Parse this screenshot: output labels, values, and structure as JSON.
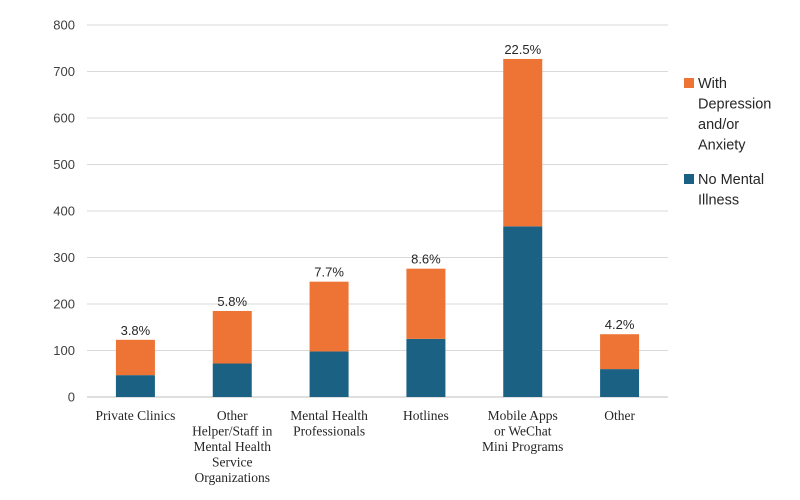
{
  "chart_data": {
    "type": "bar",
    "stacked": true,
    "title": "",
    "xlabel": "",
    "ylabel": "",
    "ylim": [
      0,
      800
    ],
    "yticks": [
      0,
      100,
      200,
      300,
      400,
      500,
      600,
      700,
      800
    ],
    "grid": true,
    "legend_position": "right",
    "categories": [
      "Private Clinics",
      "Other Helper/Staff in Mental Health Service Organizations",
      "Mental Health Professionals",
      "Hotlines",
      "Mobile Apps or WeChat Mini Programs",
      "Other"
    ],
    "category_lines": [
      [
        "Private Clinics"
      ],
      [
        "Other",
        "Helper/Staff in",
        "Mental Health",
        "Service",
        "Organizations"
      ],
      [
        "Mental Health",
        "Professionals"
      ],
      [
        "Hotlines"
      ],
      [
        "Mobile Apps",
        "or WeChat",
        "Mini Programs"
      ],
      [
        "Other"
      ]
    ],
    "series": [
      {
        "name": "No Mental Illness",
        "legend_lines": [
          "No Mental",
          "Illness"
        ],
        "color": "#1b6184",
        "values": [
          47,
          72,
          98,
          125,
          367,
          60
        ]
      },
      {
        "name": "With Depression and/or Anxiety",
        "legend_lines": [
          "With",
          "Depression",
          "and/or",
          "Anxiety"
        ],
        "color": "#ed7434",
        "values": [
          76,
          113,
          150,
          151,
          360,
          75
        ]
      }
    ],
    "data_labels": [
      "3.8%",
      "5.8%",
      "7.7%",
      "8.6%",
      "22.5%",
      "4.2%"
    ]
  }
}
